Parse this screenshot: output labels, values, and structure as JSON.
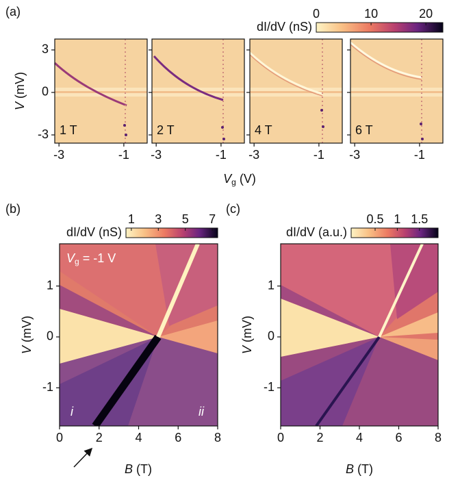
{
  "chart_data": [
    {
      "type": "heatmap",
      "panel_label": "(a)",
      "ylabel_symbol": "V",
      "ylabel_unit": "(mV)",
      "xlabel_symbol": "V",
      "xlabel_sub": "g",
      "xlabel_unit": "(V)",
      "xlim": [
        -3.13,
        -0.28
      ],
      "ylim": [
        -3.58,
        3.77
      ],
      "xticks": [
        -3,
        -1
      ],
      "yticks": [
        -3,
        0,
        3
      ],
      "subplots": [
        "1 T",
        "2 T",
        "4 T",
        "6 T"
      ],
      "colorbar": {
        "label": "dI/dV (nS)",
        "clim": [
          0,
          23.1
        ],
        "ticks": [
          0,
          10,
          20
        ]
      }
    },
    {
      "type": "heatmap",
      "panel_label": "(b)",
      "ylabel_symbol": "V",
      "ylabel_unit": "(mV)",
      "xlabel_symbol": "B",
      "xlabel_unit": "(T)",
      "xlim": [
        0,
        8
      ],
      "ylim": [
        -1.75,
        1.83
      ],
      "xticks": [
        0,
        2,
        4,
        6,
        8
      ],
      "yticks": [
        -1,
        0,
        1
      ],
      "annotation": {
        "symbol": "V",
        "sub": "g",
        "text": "= -1 V"
      },
      "region_labels": [
        "i",
        "ii"
      ],
      "colorbar": {
        "label": "dI/dV (nS)",
        "clim": [
          0.6,
          7.4
        ],
        "ticks": [
          1,
          3,
          5,
          7
        ]
      }
    },
    {
      "type": "heatmap",
      "panel_label": "(c)",
      "ylabel_symbol": "V",
      "ylabel_unit": "(mV)",
      "xlabel_symbol": "B",
      "xlabel_unit": "(T)",
      "xlim": [
        0,
        8
      ],
      "ylim": [
        -1.75,
        1.83
      ],
      "xticks": [
        0,
        2,
        4,
        6,
        8
      ],
      "yticks": [
        -1,
        0,
        1
      ],
      "colorbar": {
        "label": "dI/dV (a.u.)",
        "clim": [
          -0.04,
          1.92
        ],
        "ticks": [
          0.5,
          1,
          1.5
        ]
      }
    }
  ]
}
